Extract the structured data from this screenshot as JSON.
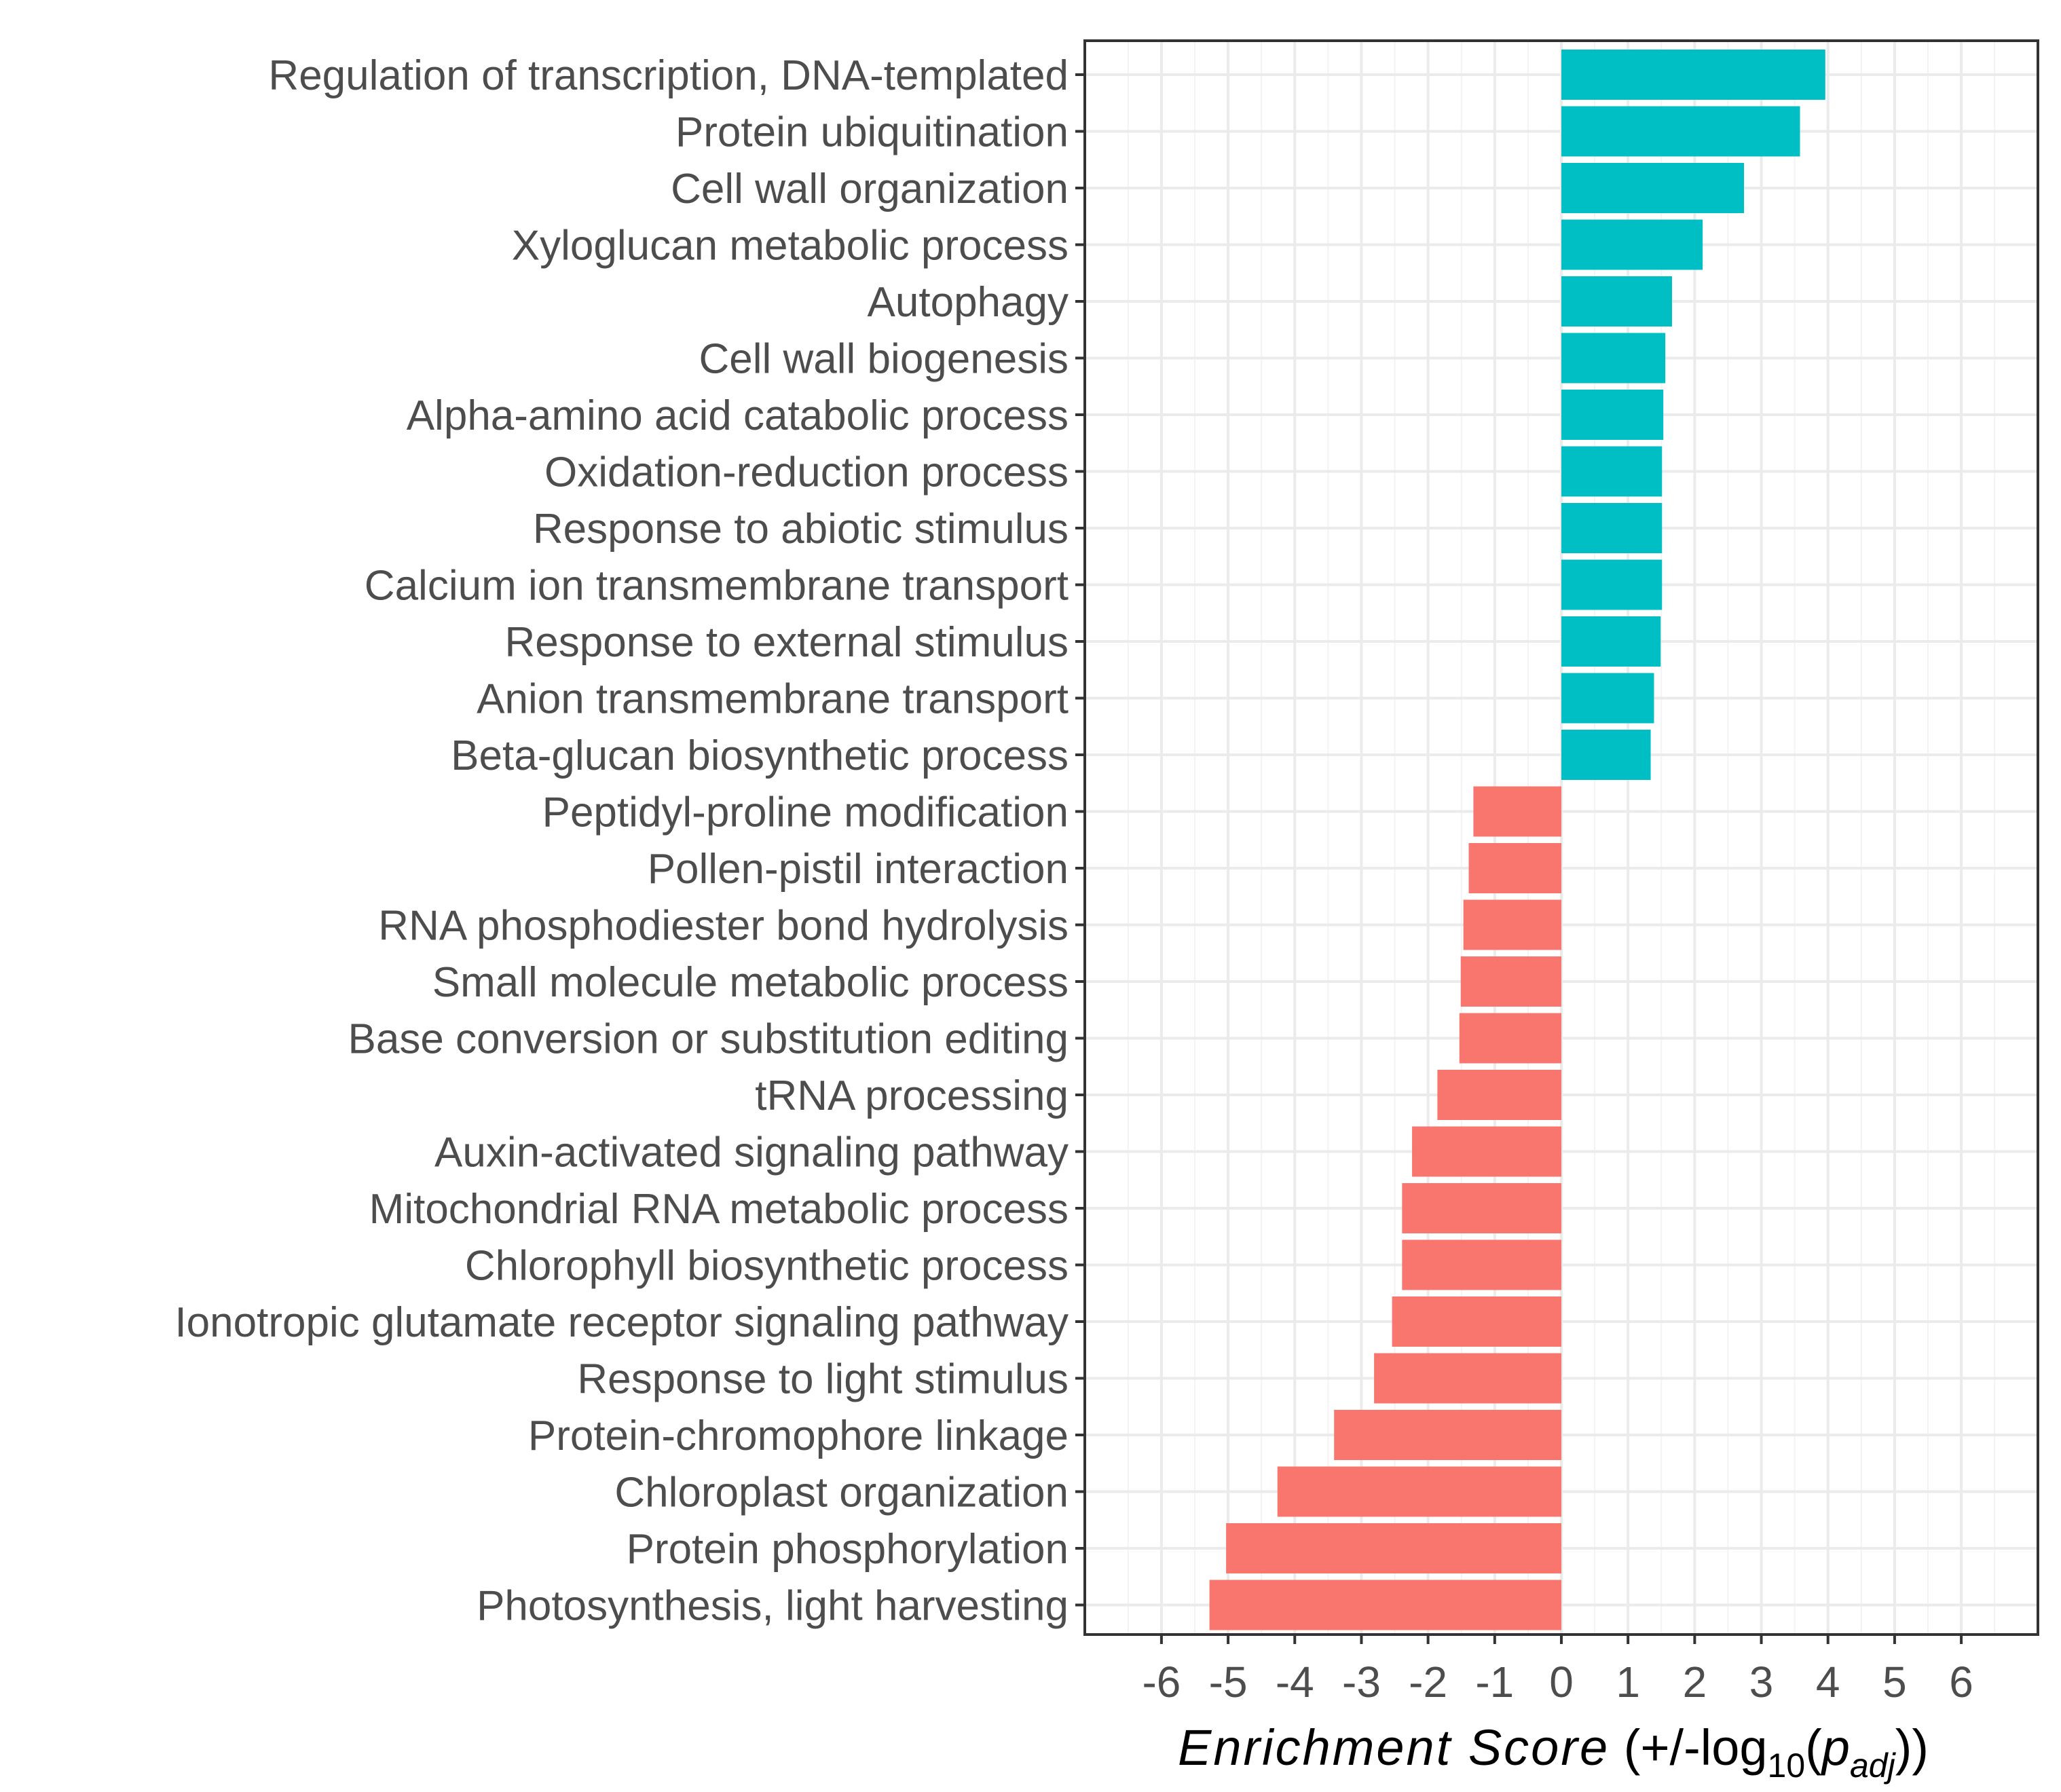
{
  "chart_data": {
    "type": "bar",
    "orientation": "horizontal",
    "categories": [
      "Regulation of transcription, DNA-templated",
      "Protein ubiquitination",
      "Cell wall organization",
      "Xyloglucan metabolic process",
      "Autophagy",
      "Cell wall biogenesis",
      "Alpha-amino acid catabolic process",
      "Oxidation-reduction process",
      "Response to abiotic stimulus",
      "Calcium ion transmembrane transport",
      "Response to external stimulus",
      "Anion transmembrane transport",
      "Beta-glucan biosynthetic process",
      "Peptidyl-proline modification",
      "Pollen-pistil interaction",
      "RNA phosphodiester bond hydrolysis",
      "Small molecule metabolic process",
      "Base conversion or substitution editing",
      "tRNA processing",
      "Auxin-activated signaling pathway",
      "Mitochondrial RNA metabolic process",
      "Chlorophyll biosynthetic process",
      "Ionotropic glutamate receptor signaling pathway",
      "Response to light stimulus",
      "Protein-chromophore linkage",
      "Chloroplast organization",
      "Protein phosphorylation",
      "Photosynthesis, light harvesting"
    ],
    "values": [
      3.96,
      3.58,
      2.74,
      2.12,
      1.66,
      1.56,
      1.53,
      1.51,
      1.51,
      1.51,
      1.49,
      1.39,
      1.34,
      -1.32,
      -1.39,
      -1.47,
      -1.51,
      -1.53,
      -1.86,
      -2.24,
      -2.39,
      -2.39,
      -2.54,
      -2.81,
      -3.41,
      -4.26,
      -5.03,
      -5.28
    ],
    "colors": {
      "positive": "#00bfc4",
      "negative": "#f8766d"
    },
    "xticks": [
      -6,
      -5,
      -4,
      -3,
      -2,
      -1,
      0,
      1,
      2,
      3,
      4,
      5,
      6
    ],
    "xlim": [
      -7.15,
      7.15
    ],
    "grid": true,
    "xlabel": {
      "main": "Enrichment Score",
      "paren_open": " (+/-log",
      "sub": "10",
      "mid": "(",
      "p": "p",
      "p_sub": "adj",
      "close": "))"
    }
  }
}
